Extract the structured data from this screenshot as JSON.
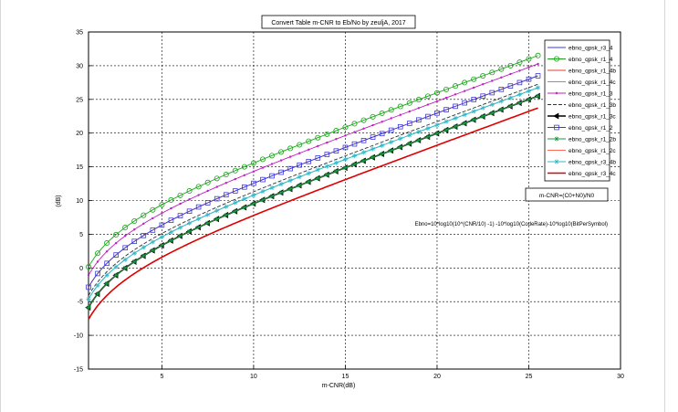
{
  "chart_data": {
    "type": "line",
    "title": "Convert Table m-CNR to Eb/No by zeuljA, 2017",
    "xlabel": "m-CNR(dB)",
    "ylabel": "(dB)",
    "xlim": [
      1,
      30
    ],
    "ylim": [
      -15,
      35
    ],
    "xticks": [
      5,
      10,
      15,
      20,
      25,
      30
    ],
    "yticks": [
      -15,
      -10,
      -5,
      0,
      5,
      10,
      15,
      20,
      25,
      30,
      35
    ],
    "grid": true,
    "legend_position": "top-right",
    "x_range": [
      1,
      25.5
    ],
    "x_step": 0.5,
    "annotations": [
      "m-CNR=(C0+N0)/N0",
      "Ebno=10*log10(10^(CNR/10) -1) -10*log10(CodeRate)-10*log10(BitPerSymbol)"
    ],
    "series": [
      {
        "name": "ebno_qpsk_r3_4",
        "code_rate": 0.75,
        "bits_per_symbol": 2,
        "color": "#3b3bd8",
        "marker": "none",
        "line_style": "solid"
      },
      {
        "name": "ebno_qpsk_r1_4",
        "code_rate": 0.25,
        "bits_per_symbol": 1,
        "color": "#1aa31a",
        "marker": "circle",
        "line_style": "solid"
      },
      {
        "name": "ebno_qpsk_r1_4b",
        "code_rate": 0.25,
        "bits_per_symbol": 2,
        "color": "#e04030",
        "marker": "none",
        "line_style": "solid"
      },
      {
        "name": "ebno_qpsk_r1_4c",
        "code_rate": 0.25,
        "bits_per_symbol": 3,
        "color": "#30b8c8",
        "marker": "none",
        "line_style": "solid"
      },
      {
        "name": "ebno_qpsk_r1_3",
        "code_rate": 0.3333,
        "bits_per_symbol": 1,
        "color": "#c020c0",
        "marker": "dot",
        "line_style": "solid"
      },
      {
        "name": "ebno_qpsk_r1_3b",
        "code_rate": 0.3333,
        "bits_per_symbol": 2,
        "color": "#333333",
        "marker": "none",
        "line_style": "dashed"
      },
      {
        "name": "ebno_qpsk_r1_3c",
        "code_rate": 0.3333,
        "bits_per_symbol": 3,
        "color": "#000000",
        "marker": "triangle",
        "line_style": "solid"
      },
      {
        "name": "ebno_qpsk_r1_2",
        "code_rate": 0.5,
        "bits_per_symbol": 1,
        "color": "#3b3bd8",
        "marker": "square",
        "line_style": "solid"
      },
      {
        "name": "ebno_qpsk_r1_2b",
        "code_rate": 0.5,
        "bits_per_symbol": 2,
        "color": "#1a9a40",
        "marker": "star",
        "line_style": "solid"
      },
      {
        "name": "ebno_qpsk_r1_2c",
        "code_rate": 0.5,
        "bits_per_symbol": 3,
        "color": "#ff6a5a",
        "marker": "none",
        "line_style": "solid"
      },
      {
        "name": "ebno_qpsk_r3_4b",
        "code_rate": 0.75,
        "bits_per_symbol": 1,
        "color": "#30b8c8",
        "marker": "star",
        "line_style": "solid"
      },
      {
        "name": "ebno_qpsk_r3_4c",
        "code_rate": 0.75,
        "bits_per_symbol": 2,
        "color": "#e00000",
        "marker": "none",
        "line_style": "solid"
      }
    ]
  }
}
